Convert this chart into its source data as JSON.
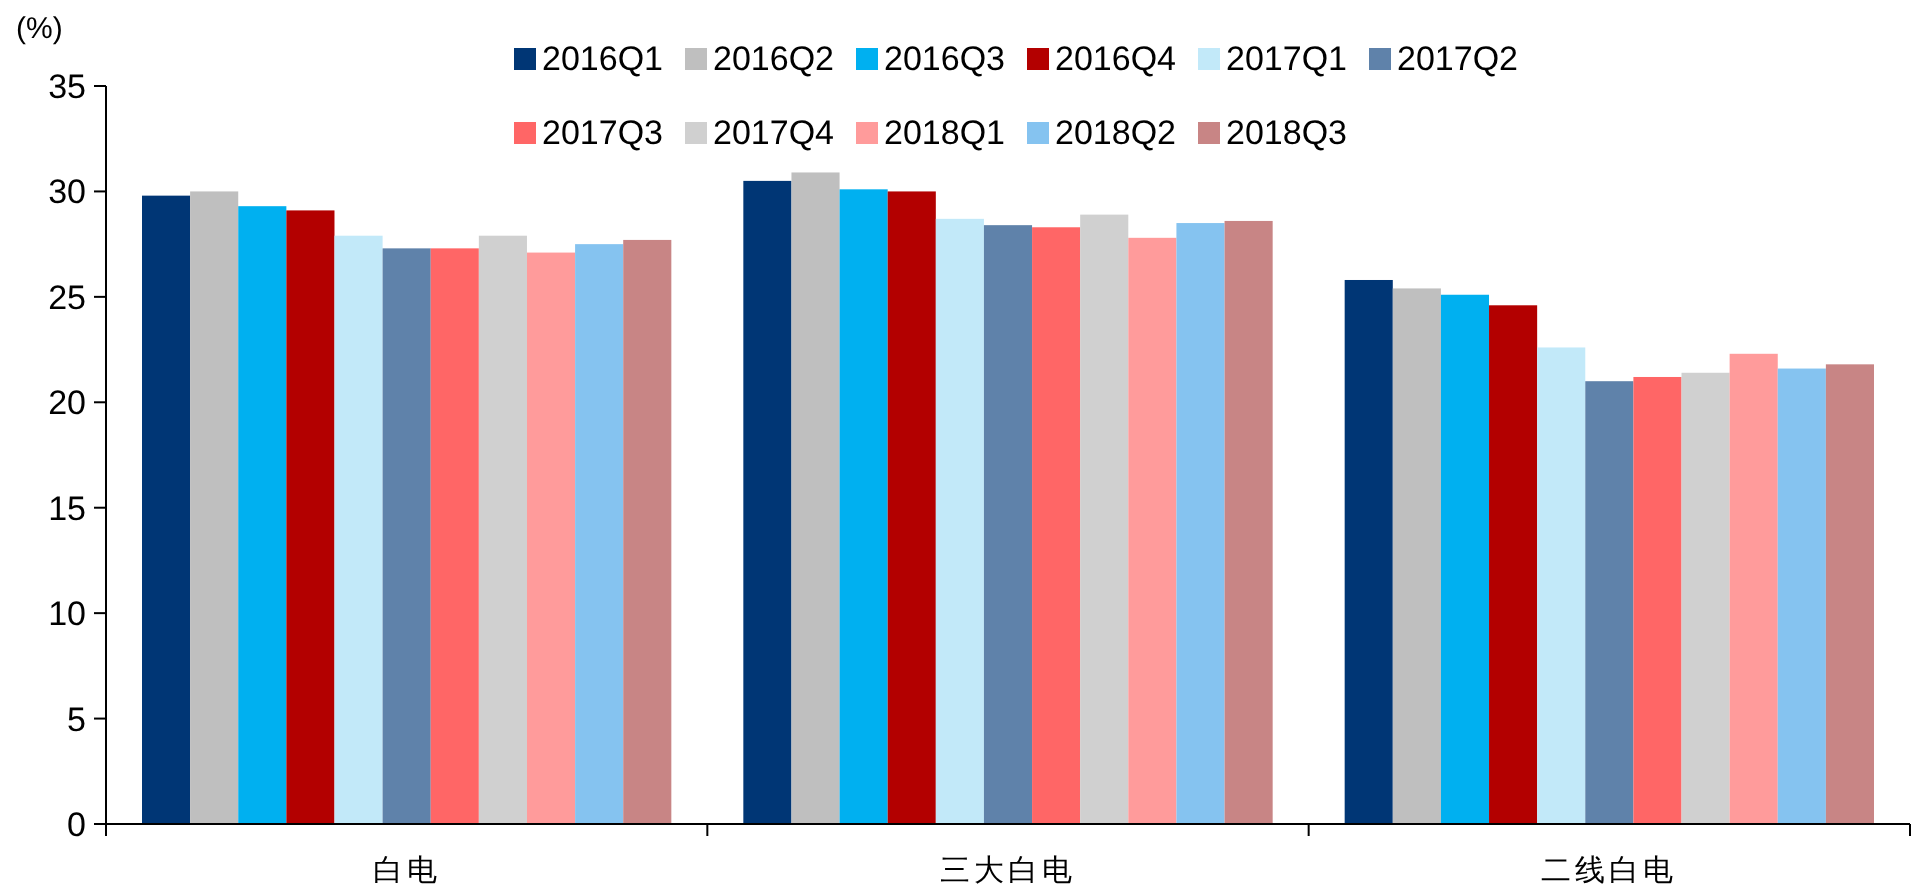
{
  "chart_data": {
    "type": "bar",
    "ylabel": "(%)",
    "categories": [
      "白电",
      "三大白电",
      "二线白电"
    ],
    "ylim": [
      0,
      35
    ],
    "yticks": [
      0,
      5,
      10,
      15,
      20,
      25,
      30,
      35
    ],
    "grid": false,
    "legend": "top",
    "series": [
      {
        "name": "2016Q1",
        "color": "#003675",
        "values": [
          29.8,
          30.5,
          25.8
        ]
      },
      {
        "name": "2016Q2",
        "color": "#bfbfbf",
        "values": [
          30.0,
          30.9,
          25.4
        ]
      },
      {
        "name": "2016Q3",
        "color": "#00b0f0",
        "values": [
          29.3,
          30.1,
          25.1
        ]
      },
      {
        "name": "2016Q4",
        "color": "#b30000",
        "values": [
          29.1,
          30.0,
          24.6
        ]
      },
      {
        "name": "2017Q1",
        "color": "#c2e9f9",
        "values": [
          27.9,
          28.7,
          22.6
        ]
      },
      {
        "name": "2017Q2",
        "color": "#5f82aa",
        "values": [
          27.3,
          28.4,
          21.0
        ]
      },
      {
        "name": "2017Q3",
        "color": "#ff6666",
        "values": [
          27.3,
          28.3,
          21.2
        ]
      },
      {
        "name": "2017Q4",
        "color": "#d0d0d0",
        "values": [
          27.9,
          28.9,
          21.4
        ]
      },
      {
        "name": "2018Q1",
        "color": "#ff9b9b",
        "values": [
          27.1,
          27.8,
          22.3
        ]
      },
      {
        "name": "2018Q2",
        "color": "#85c3f0",
        "values": [
          27.5,
          28.5,
          21.6
        ]
      },
      {
        "name": "2018Q3",
        "color": "#c88585",
        "values": [
          27.7,
          28.6,
          21.8
        ]
      }
    ]
  }
}
